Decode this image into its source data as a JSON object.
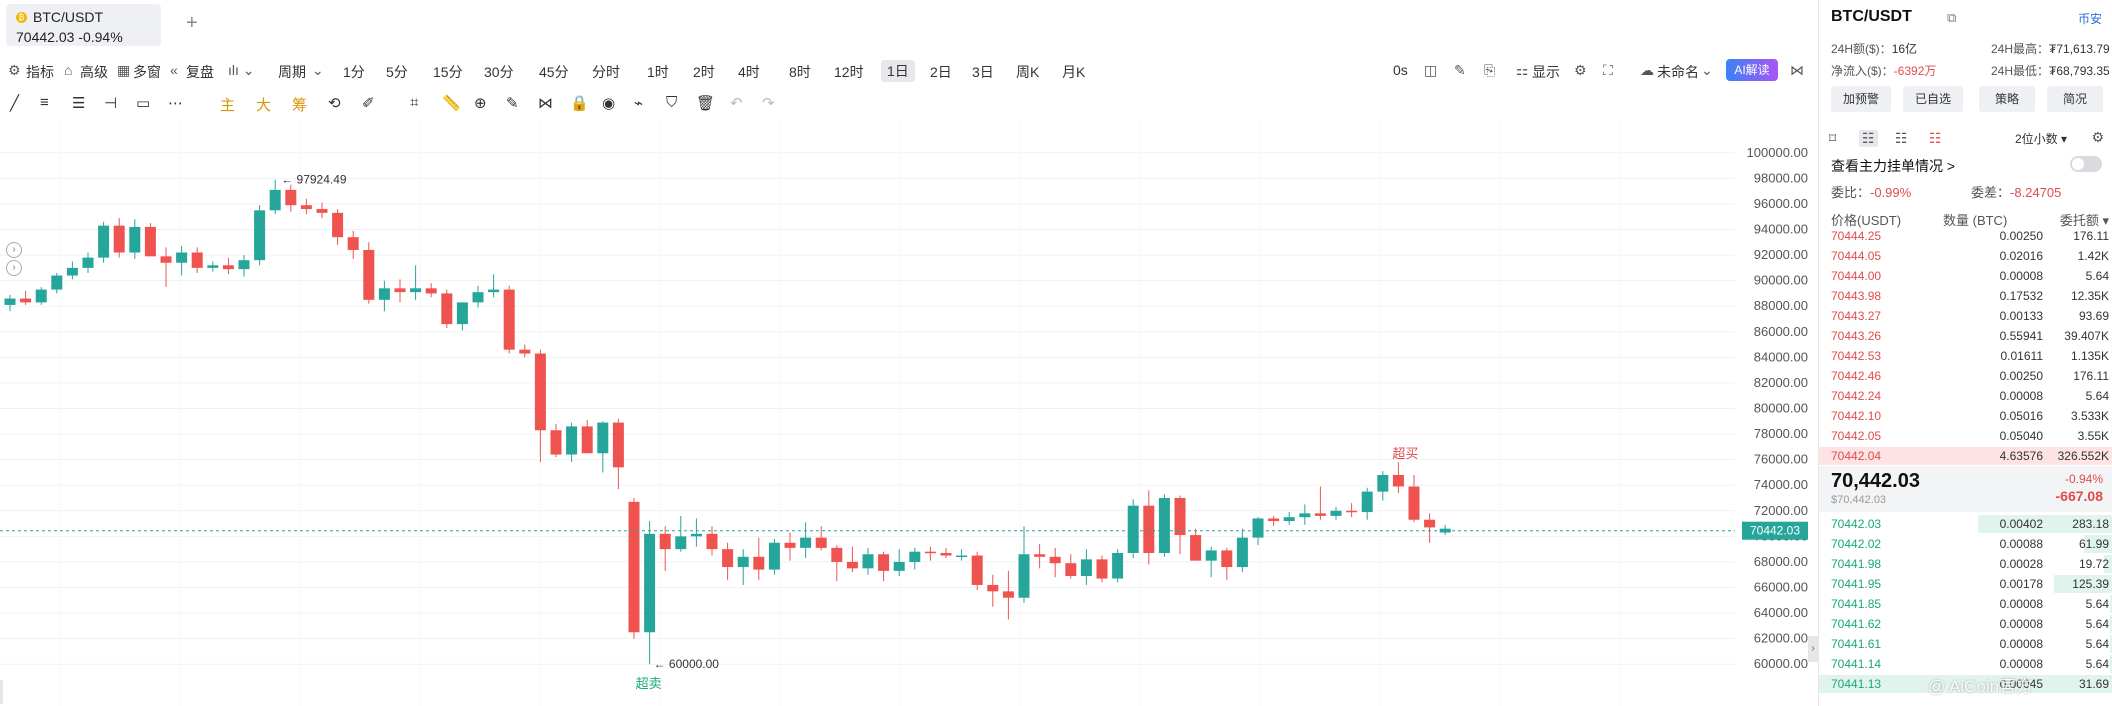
{
  "tabbar": {
    "tab": {
      "coin_icon": "bitcoin-icon",
      "pair": "BTC/USDT",
      "quote": "70442.03  -0.94%"
    },
    "add_label": "+"
  },
  "toolbar": {
    "indicator": "指标",
    "advanced": "高级",
    "multi": "多窗",
    "replay": "复盘",
    "period": "周期",
    "intervals": [
      "1分",
      "5分",
      "15分",
      "30分",
      "45分",
      "分时",
      "1时",
      "2时",
      "4时",
      "8时",
      "12时",
      "1日",
      "2日",
      "3日",
      "周K",
      "月K"
    ],
    "active_interval": "1日",
    "seconds": "0s",
    "display": "显示",
    "unnamed": "未命名",
    "ai": "AI解读"
  },
  "drawbar": {
    "main": "主",
    "big": "大",
    "chip": "筹"
  },
  "chart_data": {
    "type": "candlestick",
    "title": "BTC/USDT",
    "interval": "1日",
    "ylim": [
      59000,
      101000
    ],
    "y_ticks": [
      "100000.00",
      "98000.00",
      "96000.00",
      "94000.00",
      "92000.00",
      "90000.00",
      "88000.00",
      "86000.00",
      "84000.00",
      "82000.00",
      "80000.00",
      "78000.00",
      "76000.00",
      "74000.00",
      "72000.00",
      "70000.00",
      "68000.00",
      "66000.00",
      "64000.00",
      "62000.00",
      "60000.00"
    ],
    "current_price_label": "70442.03",
    "current_price": 70442.03,
    "high_marker": {
      "label": "97924.49",
      "value": 97924.49
    },
    "low_marker": {
      "label": "60000.00",
      "value": 60000.0
    },
    "overbought_label": "超买",
    "oversold_label": "超卖",
    "up_color": "#26a69a",
    "down_color": "#ef5350",
    "candles": [
      [
        88100,
        88900,
        87600,
        88600
      ],
      [
        88600,
        89200,
        88100,
        88300
      ],
      [
        88300,
        89500,
        88100,
        89300
      ],
      [
        89300,
        90600,
        89000,
        90400
      ],
      [
        90400,
        91500,
        90100,
        91000
      ],
      [
        91000,
        92200,
        90600,
        91800
      ],
      [
        91800,
        94600,
        91400,
        94300
      ],
      [
        94300,
        94900,
        91800,
        92200
      ],
      [
        92200,
        94800,
        91700,
        94200
      ],
      [
        94200,
        94500,
        92200,
        91900
      ],
      [
        91900,
        92600,
        89500,
        91400
      ],
      [
        91400,
        92700,
        90400,
        92200
      ],
      [
        92200,
        92600,
        90600,
        91000
      ],
      [
        91000,
        91500,
        90700,
        91200
      ],
      [
        91200,
        91800,
        90500,
        90900
      ],
      [
        90900,
        92000,
        90300,
        91600
      ],
      [
        91600,
        95900,
        91200,
        95500
      ],
      [
        95500,
        97900,
        95200,
        97100
      ],
      [
        97100,
        97500,
        95400,
        95900
      ],
      [
        95900,
        96400,
        95200,
        95600
      ],
      [
        95600,
        96100,
        94900,
        95300
      ],
      [
        95300,
        95600,
        92800,
        93400
      ],
      [
        93400,
        93900,
        91700,
        92400
      ],
      [
        92400,
        93000,
        88200,
        88500
      ],
      [
        88500,
        90000,
        87600,
        89400
      ],
      [
        89400,
        90100,
        88300,
        89100
      ],
      [
        89100,
        91200,
        88500,
        89400
      ],
      [
        89400,
        89800,
        88700,
        89000
      ],
      [
        89000,
        89300,
        86300,
        86600
      ],
      [
        86600,
        88200,
        86100,
        88300
      ],
      [
        88300,
        89600,
        87900,
        89100
      ],
      [
        89100,
        90500,
        88700,
        89300
      ],
      [
        89300,
        89600,
        84300,
        84600
      ],
      [
        84600,
        85000,
        84000,
        84300
      ],
      [
        84300,
        84600,
        75800,
        78300
      ],
      [
        78300,
        78800,
        76200,
        76400
      ],
      [
        76400,
        78900,
        75800,
        78600
      ],
      [
        78600,
        79100,
        76600,
        76500
      ],
      [
        76500,
        79000,
        75000,
        78900
      ],
      [
        78900,
        79200,
        73700,
        75400
      ],
      [
        72700,
        73000,
        62000,
        62500
      ],
      [
        62500,
        71200,
        60000,
        70200
      ],
      [
        70200,
        70800,
        67300,
        69000
      ],
      [
        69000,
        71600,
        68800,
        70000
      ],
      [
        70000,
        71400,
        69200,
        70200
      ],
      [
        70200,
        70800,
        68500,
        69000
      ],
      [
        69000,
        69500,
        66600,
        67600
      ],
      [
        67600,
        69000,
        66200,
        68400
      ],
      [
        68400,
        69900,
        66600,
        67400
      ],
      [
        67400,
        69800,
        67000,
        69500
      ],
      [
        69500,
        70300,
        68100,
        69100
      ],
      [
        69100,
        71100,
        68300,
        69900
      ],
      [
        69900,
        70800,
        68900,
        69100
      ],
      [
        69100,
        69300,
        66500,
        68000
      ],
      [
        68000,
        69200,
        67200,
        67500
      ],
      [
        67500,
        69100,
        67000,
        68600
      ],
      [
        68600,
        68800,
        66500,
        67300
      ],
      [
        67300,
        69000,
        66900,
        68000
      ],
      [
        68000,
        69100,
        67400,
        68800
      ],
      [
        68800,
        69200,
        68100,
        68700
      ],
      [
        68700,
        69100,
        68300,
        68500
      ],
      [
        68500,
        69000,
        68100,
        68500
      ],
      [
        68500,
        68800,
        65800,
        66200
      ],
      [
        66200,
        67000,
        64500,
        65700
      ],
      [
        65700,
        67300,
        63500,
        65200
      ],
      [
        65200,
        70800,
        64800,
        68600
      ],
      [
        68600,
        69400,
        67500,
        68400
      ],
      [
        68400,
        69100,
        66800,
        67900
      ],
      [
        67900,
        68600,
        66700,
        66900
      ],
      [
        66900,
        69000,
        66200,
        68200
      ],
      [
        68200,
        68500,
        66400,
        66700
      ],
      [
        66700,
        69000,
        66400,
        68700
      ],
      [
        68700,
        72900,
        68300,
        72400
      ],
      [
        72400,
        73600,
        67800,
        68700
      ],
      [
        68700,
        73300,
        68400,
        73000
      ],
      [
        73000,
        73200,
        68600,
        70100
      ],
      [
        70100,
        70600,
        68500,
        68100
      ],
      [
        68100,
        69200,
        66800,
        68900
      ],
      [
        68900,
        69100,
        66600,
        67600
      ],
      [
        67600,
        70600,
        67200,
        69900
      ],
      [
        69900,
        71500,
        69300,
        71400
      ],
      [
        71400,
        71600,
        70800,
        71200
      ],
      [
        71200,
        71900,
        70900,
        71500
      ],
      [
        71500,
        72500,
        70900,
        71800
      ],
      [
        71800,
        73900,
        71300,
        71600
      ],
      [
        71600,
        72300,
        71300,
        72000
      ],
      [
        72000,
        72600,
        71500,
        71900
      ],
      [
        71900,
        73800,
        71300,
        73500
      ],
      [
        73500,
        75100,
        72800,
        74800
      ],
      [
        74800,
        75800,
        73400,
        73900
      ],
      [
        73900,
        74800,
        71100,
        71300
      ],
      [
        71300,
        71800,
        69500,
        70700
      ],
      [
        70300,
        70900,
        70100,
        70600
      ]
    ]
  },
  "panel": {
    "title": "BTC/USDT",
    "exchange": "币安",
    "vol_label": "24H额($)：",
    "vol_value": "16亿",
    "high_label": "24H最高：",
    "high_value": "₮71,613.79",
    "inflow_label": "净流入($)：",
    "inflow_value": "-6392万",
    "low_label": "24H最低：",
    "low_value": "₮68,793.35",
    "buttons": [
      "加预警",
      "已自选",
      "策略",
      "简况"
    ],
    "decimals": "2位小数 ▾",
    "mainforce": "查看主力挂单情况 >",
    "ratio_label": "委比：",
    "ratio_value": "-0.99%",
    "diff_label": "委差：",
    "diff_value": "-8.24705",
    "head_price": "价格(USDT)",
    "head_qty": "数量 (BTC)",
    "head_total": "委托额 ▾",
    "asks": [
      {
        "p": "70444.25",
        "q": "0.00250",
        "t": "176.11",
        "d": 0.0
      },
      {
        "p": "70444.05",
        "q": "0.02016",
        "t": "1.42K",
        "d": 0.0
      },
      {
        "p": "70444.00",
        "q": "0.00008",
        "t": "5.64",
        "d": 0.0
      },
      {
        "p": "70443.98",
        "q": "0.17532",
        "t": "12.35K",
        "d": 0.0
      },
      {
        "p": "70443.27",
        "q": "0.00133",
        "t": "93.69",
        "d": 0.0
      },
      {
        "p": "70443.26",
        "q": "0.55941",
        "t": "39.407K",
        "d": 0.0
      },
      {
        "p": "70442.53",
        "q": "0.01611",
        "t": "1.135K",
        "d": 0.0
      },
      {
        "p": "70442.46",
        "q": "0.00250",
        "t": "176.11",
        "d": 0.0
      },
      {
        "p": "70442.24",
        "q": "0.00008",
        "t": "5.64",
        "d": 0.0
      },
      {
        "p": "70442.10",
        "q": "0.05016",
        "t": "3.533K",
        "d": 0.0
      },
      {
        "p": "70442.05",
        "q": "0.05040",
        "t": "3.55K",
        "d": 0.0
      },
      {
        "p": "70442.04",
        "q": "4.63576",
        "t": "326.552K",
        "d": 1.0
      }
    ],
    "last_price": "70,442.03",
    "last_usd": "$70,442.03",
    "last_pct": "-0.94%",
    "last_chg": "-667.08",
    "bids": [
      {
        "p": "70442.03",
        "q": "0.00402",
        "t": "283.18",
        "d": 0.46
      },
      {
        "p": "70442.02",
        "q": "0.00088",
        "t": "61.99",
        "d": 0.1
      },
      {
        "p": "70441.98",
        "q": "0.00028",
        "t": "19.72",
        "d": 0.03
      },
      {
        "p": "70441.95",
        "q": "0.00178",
        "t": "125.39",
        "d": 0.2
      },
      {
        "p": "70441.85",
        "q": "0.00008",
        "t": "5.64",
        "d": 0.01
      },
      {
        "p": "70441.62",
        "q": "0.00008",
        "t": "5.64",
        "d": 0.01
      },
      {
        "p": "70441.61",
        "q": "0.00008",
        "t": "5.64",
        "d": 0.01
      },
      {
        "p": "70441.14",
        "q": "0.00008",
        "t": "5.64",
        "d": 0.01
      },
      {
        "p": "70441.13",
        "q": "0.00045",
        "t": "31.69",
        "d": 1.0
      }
    ],
    "watermark": "@ AiCoin官方"
  }
}
